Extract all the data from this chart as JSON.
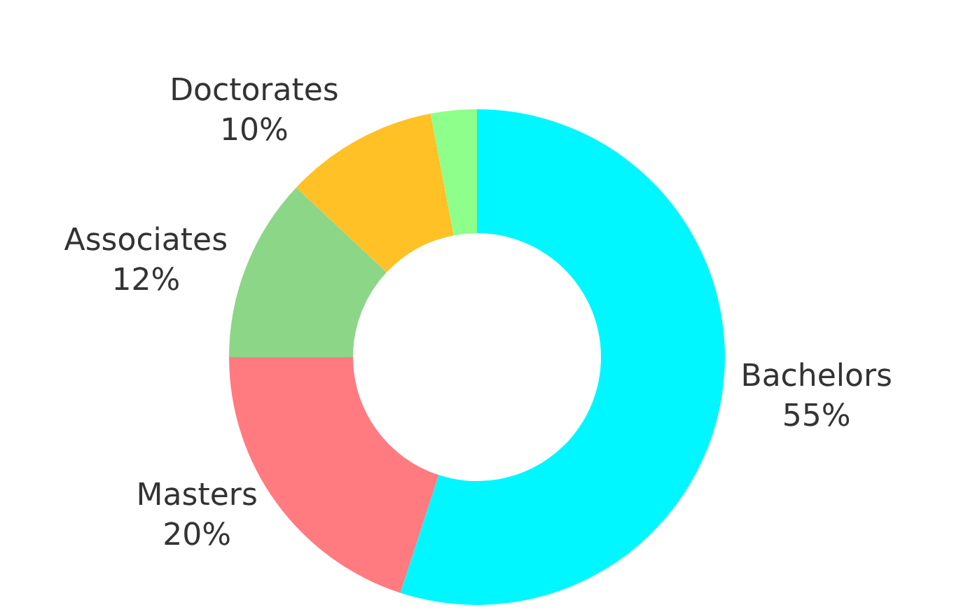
{
  "chart_data": {
    "type": "donut",
    "categories": [
      "Bachelors",
      "Masters",
      "Associates",
      "Doctorates",
      null
    ],
    "values": [
      55,
      20,
      12,
      10,
      3
    ],
    "colors": [
      "#00f7ff",
      "#ff7b80",
      "#8cd688",
      "#ffc125",
      "#8dff8a"
    ],
    "value_labels": [
      "55%",
      "20%",
      "12%",
      "10%",
      null
    ],
    "legend": false
  }
}
